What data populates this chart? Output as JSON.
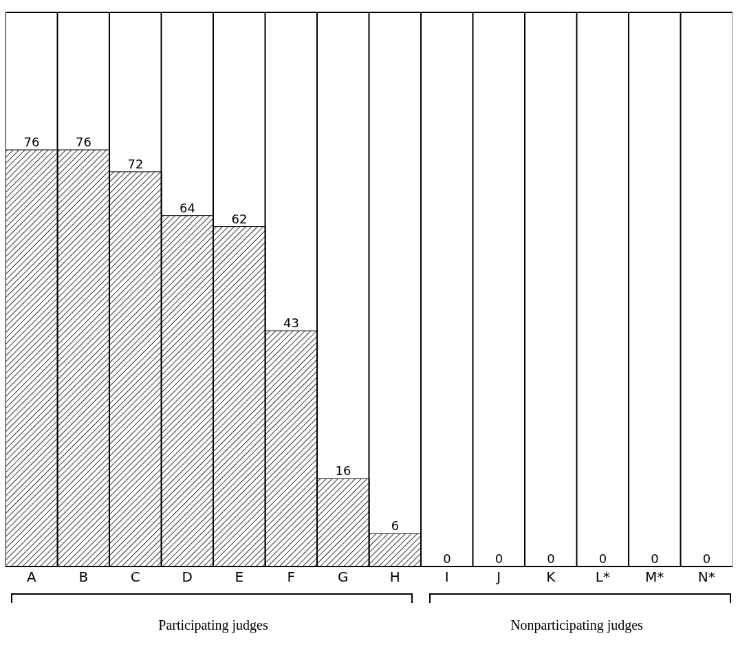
{
  "chart_data": {
    "type": "bar",
    "categories": [
      "A",
      "B",
      "C",
      "D",
      "E",
      "F",
      "G",
      "H",
      "I",
      "J",
      "K",
      "L*",
      "M*",
      "N*"
    ],
    "values": [
      76,
      76,
      72,
      64,
      62,
      43,
      16,
      6,
      0,
      0,
      0,
      0,
      0,
      0
    ],
    "color": "#000000",
    "data_labels": true,
    "annotations": [
      "Participating judges",
      "Nonparticipating judges"
    ]
  }
}
